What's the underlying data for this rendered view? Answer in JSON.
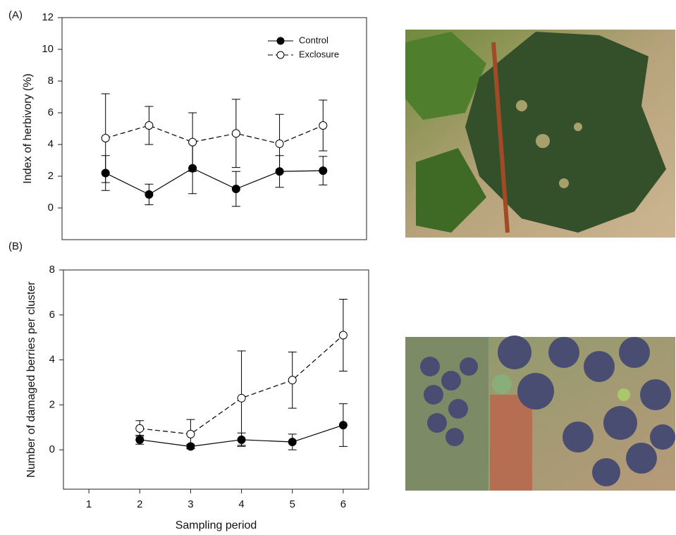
{
  "chart_data": [
    {
      "type": "line",
      "panel_label": "(A)",
      "y_label": "Index of herbivory (%)",
      "x": [
        1,
        2,
        3,
        4,
        5,
        6
      ],
      "xlim": [
        0,
        7
      ],
      "ylim": [
        -2,
        12
      ],
      "yticks": [
        0,
        2,
        4,
        6,
        8,
        10,
        12
      ],
      "legend": "upper right",
      "series": [
        {
          "name": "Control",
          "color": "#000000",
          "marker_fill": "#000000",
          "dashed": false,
          "values": [
            2.2,
            0.85,
            2.5,
            1.2,
            2.3,
            2.35
          ],
          "errors": [
            1.1,
            0.65,
            1.6,
            1.1,
            1.0,
            0.9
          ]
        },
        {
          "name": "Exclosure",
          "color": "#000000",
          "marker_fill": "#ffffff",
          "dashed": true,
          "values": [
            4.4,
            5.2,
            4.15,
            4.7,
            4.05,
            5.2
          ],
          "errors": [
            2.8,
            1.2,
            1.85,
            2.15,
            1.85,
            1.6
          ]
        }
      ]
    },
    {
      "type": "line",
      "panel_label": "(B)",
      "y_label": "Number of damaged berries per cluster",
      "x_label": "Sampling period",
      "x": [
        2,
        3,
        4,
        5,
        6
      ],
      "xlim": [
        0.5,
        6.5
      ],
      "xticks": [
        1,
        2,
        3,
        4,
        5,
        6
      ],
      "ylim": [
        -1.75,
        8
      ],
      "yticks": [
        0,
        2,
        4,
        6,
        8
      ],
      "series": [
        {
          "name": "Control",
          "color": "#000000",
          "marker_fill": "#000000",
          "dashed": false,
          "values": [
            0.45,
            0.15,
            0.45,
            0.35,
            1.1
          ],
          "errors": [
            0.2,
            0.1,
            0.3,
            0.35,
            0.95
          ]
        },
        {
          "name": "Exclosure",
          "color": "#000000",
          "marker_fill": "#ffffff",
          "dashed": true,
          "values": [
            0.95,
            0.7,
            2.3,
            3.1,
            5.1
          ],
          "errors": [
            0.35,
            0.65,
            2.1,
            1.25,
            1.6
          ]
        }
      ]
    }
  ]
}
